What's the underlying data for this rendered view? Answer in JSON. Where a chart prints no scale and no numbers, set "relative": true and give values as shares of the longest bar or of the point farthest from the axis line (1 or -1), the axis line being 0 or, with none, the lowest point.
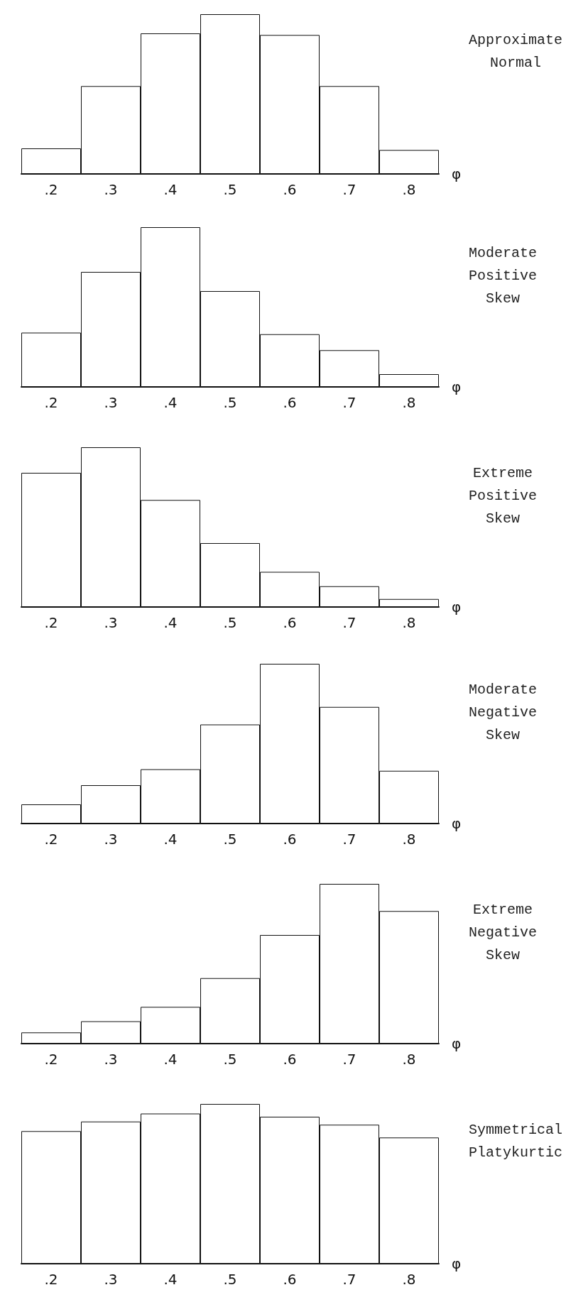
{
  "chart_data": [
    {
      "type": "bar",
      "annotations": [
        "Approximate\nNormal"
      ],
      "xlabel": "φ",
      "categories": [
        ".2",
        ".3",
        ".4",
        ".5",
        ".6",
        ".7",
        ".8"
      ],
      "values": [
        0.16,
        0.55,
        0.88,
        1,
        0.87,
        0.55,
        0.15
      ],
      "color": "#ffffff",
      "relative": true
    },
    {
      "type": "bar",
      "annotations": [
        "Moderate\nPositive\nSkew"
      ],
      "xlabel": "φ",
      "categories": [
        ".2",
        ".3",
        ".4",
        ".5",
        ".6",
        ".7",
        ".8"
      ],
      "values": [
        0.34,
        0.72,
        1,
        0.6,
        0.33,
        0.23,
        0.08
      ],
      "color": "#ffffff",
      "relative": true
    },
    {
      "type": "bar",
      "annotations": [
        "Extreme\nPositive\nSkew"
      ],
      "xlabel": "φ",
      "categories": [
        ".2",
        ".3",
        ".4",
        ".5",
        ".6",
        ".7",
        ".8"
      ],
      "values": [
        0.84,
        1,
        0.67,
        0.4,
        0.22,
        0.13,
        0.05
      ],
      "color": "#ffffff",
      "relative": true
    },
    {
      "type": "bar",
      "annotations": [
        "Moderate\nNegative\nSkew"
      ],
      "xlabel": "φ",
      "categories": [
        ".2",
        ".3",
        ".4",
        ".5",
        ".6",
        ".7",
        ".8"
      ],
      "values": [
        0.12,
        0.24,
        0.34,
        0.62,
        1,
        0.73,
        0.33
      ],
      "color": "#ffffff",
      "relative": true
    },
    {
      "type": "bar",
      "annotations": [
        "Extreme\nNegative\nSkew"
      ],
      "xlabel": "φ",
      "categories": [
        ".2",
        ".3",
        ".4",
        ".5",
        ".6",
        ".7",
        ".8"
      ],
      "values": [
        0.07,
        0.14,
        0.23,
        0.41,
        0.68,
        1,
        0.83
      ],
      "color": "#ffffff",
      "relative": true
    },
    {
      "type": "bar",
      "annotations": [
        "Symmetrical\nPlatykurtic"
      ],
      "xlabel": "φ",
      "categories": [
        ".2",
        ".3",
        ".4",
        ".5",
        ".6",
        ".7",
        ".8"
      ],
      "values": [
        0.83,
        0.89,
        0.94,
        1,
        0.92,
        0.87,
        0.79
      ],
      "color": "#ffffff",
      "relative": true
    }
  ]
}
